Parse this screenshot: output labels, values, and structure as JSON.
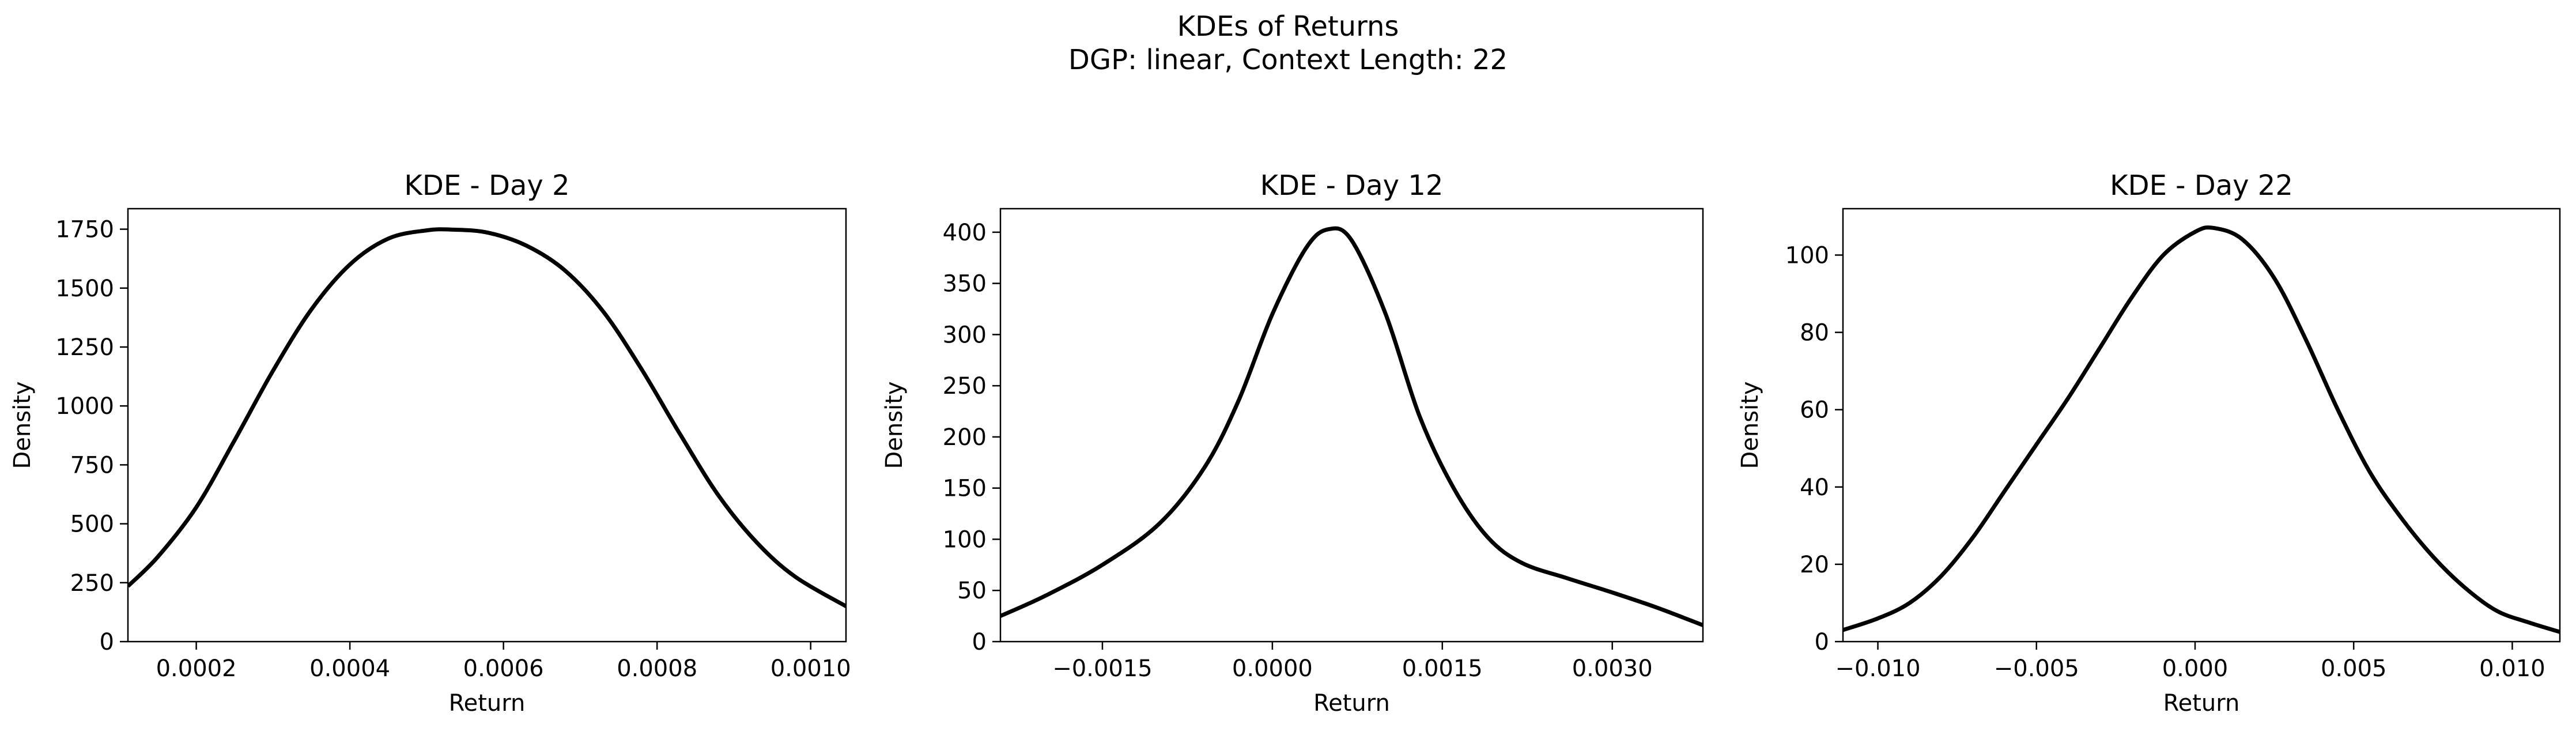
{
  "figure": {
    "title_line1": "KDEs of Returns",
    "title_line2": "DGP: linear, Context Length: 22"
  },
  "chart_data": [
    {
      "type": "line",
      "title": "KDE - Day 2",
      "xlabel": "Return",
      "ylabel": "Density",
      "xlim": [
        0.000111,
        0.001046
      ],
      "ylim": [
        0,
        1837
      ],
      "grid": false,
      "legend": "none",
      "xticks": [
        0.0002,
        0.0004,
        0.0006,
        0.0008,
        0.001
      ],
      "xtick_labels": [
        "0.0002",
        "0.0004",
        "0.0006",
        "0.0008",
        "0.0010"
      ],
      "yticks": [
        0,
        250,
        500,
        750,
        1000,
        1250,
        1500,
        1750
      ],
      "ytick_labels": [
        "0",
        "250",
        "500",
        "750",
        "1000",
        "1250",
        "1500",
        "1750"
      ],
      "series": [
        {
          "color": "#000000",
          "x": [
            0.000111,
            0.00015,
            0.0002,
            0.00025,
            0.0003,
            0.00035,
            0.0004,
            0.00045,
            0.0005,
            0.000535,
            0.00058,
            0.00063,
            0.00068,
            0.00073,
            0.00078,
            0.00083,
            0.00088,
            0.00093,
            0.00098,
            0.001046
          ],
          "y": [
            235,
            360,
            570,
            855,
            1150,
            1410,
            1600,
            1710,
            1745,
            1748,
            1735,
            1680,
            1575,
            1400,
            1155,
            880,
            620,
            420,
            275,
            150
          ]
        }
      ]
    },
    {
      "type": "line",
      "title": "KDE - Day 12",
      "xlabel": "Return",
      "ylabel": "Density",
      "xlim": [
        -0.0024,
        0.0038
      ],
      "ylim": [
        0,
        423
      ],
      "grid": false,
      "legend": "none",
      "xticks": [
        -0.0015,
        0.0,
        0.0015,
        0.003
      ],
      "xtick_labels": [
        "−0.0015",
        "0.0000",
        "0.0015",
        "0.0030"
      ],
      "yticks": [
        0,
        50,
        100,
        150,
        200,
        250,
        300,
        350,
        400
      ],
      "ytick_labels": [
        "0",
        "50",
        "100",
        "150",
        "200",
        "250",
        "300",
        "350",
        "400"
      ],
      "series": [
        {
          "color": "#000000",
          "x": [
            -0.0024,
            -0.002,
            -0.0015,
            -0.001,
            -0.0006,
            -0.0003,
            0.0,
            0.0003,
            0.0005,
            0.0007,
            0.001,
            0.0013,
            0.0016,
            0.0019,
            0.0022,
            0.0026,
            0.003,
            0.0034,
            0.0038
          ],
          "y": [
            25,
            45,
            75,
            115,
            170,
            235,
            320,
            385,
            403,
            392,
            320,
            220,
            150,
            102,
            77,
            62,
            48,
            33,
            16
          ]
        }
      ]
    },
    {
      "type": "line",
      "title": "KDE - Day 22",
      "xlabel": "Return",
      "ylabel": "Density",
      "xlim": [
        -0.0111,
        0.0115
      ],
      "ylim": [
        0,
        112
      ],
      "grid": false,
      "legend": "none",
      "xticks": [
        -0.01,
        -0.005,
        0.0,
        0.005,
        0.01
      ],
      "xtick_labels": [
        "−0.010",
        "−0.005",
        "0.000",
        "0.005",
        "0.010"
      ],
      "yticks": [
        0,
        20,
        40,
        60,
        80,
        100
      ],
      "ytick_labels": [
        "0",
        "20",
        "40",
        "60",
        "80",
        "100"
      ],
      "series": [
        {
          "color": "#000000",
          "x": [
            -0.0111,
            -0.01,
            -0.009,
            -0.008,
            -0.007,
            -0.006,
            -0.005,
            -0.004,
            -0.003,
            -0.002,
            -0.001,
            0.0,
            0.0006,
            0.0015,
            0.0025,
            0.0035,
            0.0045,
            0.0055,
            0.0065,
            0.0075,
            0.0085,
            0.0095,
            0.0105,
            0.0115
          ],
          "y": [
            3,
            6,
            10,
            17,
            27,
            39,
            51,
            63,
            76,
            89,
            100,
            106,
            107,
            104,
            94,
            78,
            60,
            44,
            32,
            22,
            14,
            8,
            5,
            2.5
          ]
        }
      ]
    }
  ]
}
